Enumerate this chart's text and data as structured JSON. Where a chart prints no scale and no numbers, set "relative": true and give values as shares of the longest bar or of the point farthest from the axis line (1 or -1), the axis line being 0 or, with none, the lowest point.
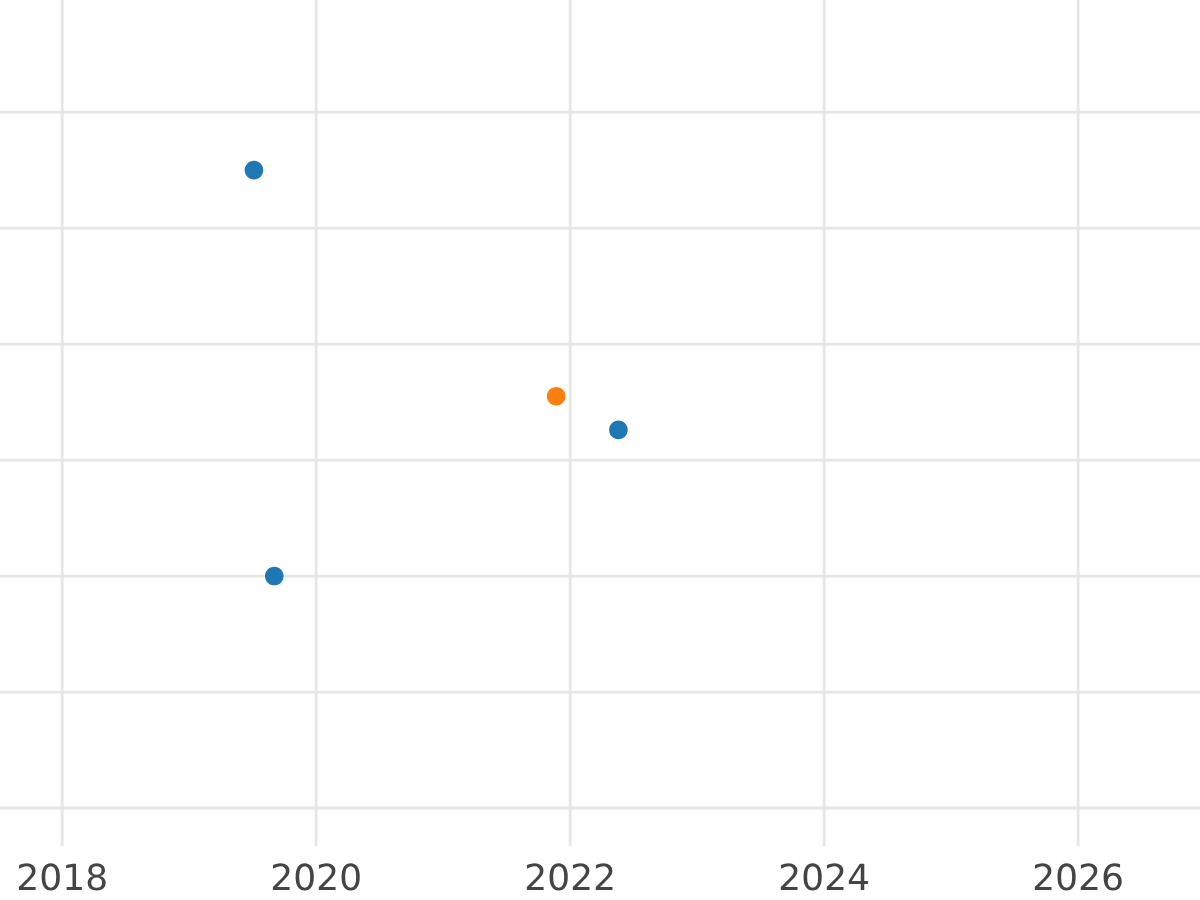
{
  "chart_data": {
    "type": "scatter",
    "relative": true,
    "x": [
      2019.51,
      2021.89,
      2022.38,
      2019.67
    ],
    "values": [
      1,
      0.443,
      0.36,
      0
    ],
    "colors": [
      "#1f77b4",
      "#ff7f0e",
      "#1f77b4",
      "#1f77b4"
    ],
    "xlim": [
      2017.51,
      2026.96
    ],
    "xticks": [
      2018,
      2020,
      2022,
      2024,
      2026
    ],
    "grid": true,
    "marker": "circle"
  }
}
